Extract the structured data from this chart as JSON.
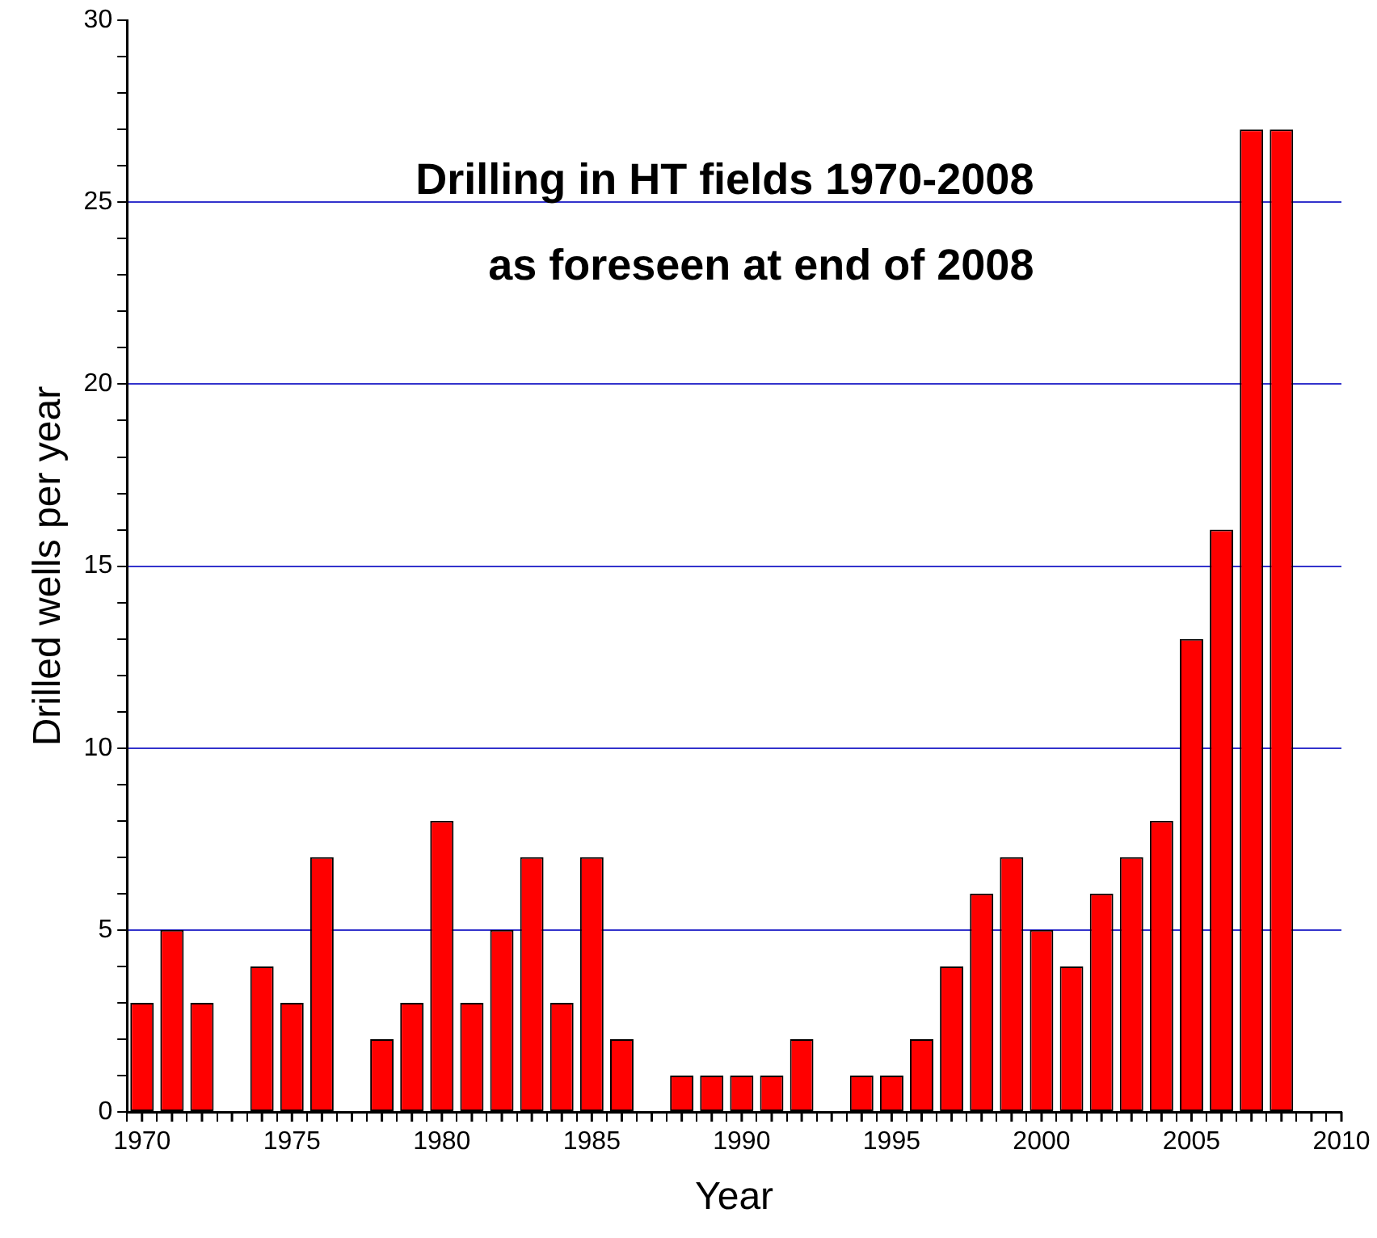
{
  "chart_data": {
    "type": "bar",
    "title": "Drilling in HT fields 1970-2008",
    "subtitle": "as foreseen at end of 2008",
    "xlabel": "Year",
    "ylabel": "Drilled wells per year",
    "x": [
      1970,
      1971,
      1972,
      1973,
      1974,
      1975,
      1976,
      1977,
      1978,
      1979,
      1980,
      1981,
      1982,
      1983,
      1984,
      1985,
      1986,
      1987,
      1988,
      1989,
      1990,
      1991,
      1992,
      1993,
      1994,
      1995,
      1996,
      1997,
      1998,
      1999,
      2000,
      2001,
      2002,
      2003,
      2004,
      2005,
      2006,
      2007,
      2008
    ],
    "values": [
      3,
      5,
      3,
      0,
      4,
      3,
      7,
      0,
      2,
      3,
      8,
      3,
      5,
      7,
      3,
      7,
      2,
      0,
      1,
      1,
      1,
      1,
      2,
      0,
      1,
      1,
      2,
      4,
      6,
      7,
      5,
      4,
      6,
      7,
      8,
      13,
      16,
      27,
      27
    ],
    "color": "#ff0000",
    "xlim": [
      1969.5,
      2010
    ],
    "xticks": [
      1970,
      {
        "value": 1971,
        "label": null
      },
      {
        "value": 1972,
        "label": null
      },
      {
        "value": 1973,
        "label": null
      },
      {
        "value": 1974,
        "label": null
      },
      1975,
      {
        "value": 1976,
        "label": null
      },
      {
        "value": 1977,
        "label": null
      },
      {
        "value": 1978,
        "label": null
      },
      {
        "value": 1979,
        "label": null
      },
      1980,
      {
        "value": 1981,
        "label": null
      },
      {
        "value": 1982,
        "label": null
      },
      {
        "value": 1983,
        "label": null
      },
      {
        "value": 1984,
        "label": null
      },
      1985,
      {
        "value": 1986,
        "label": null
      },
      {
        "value": 1987,
        "label": null
      },
      {
        "value": 1988,
        "label": null
      },
      {
        "value": 1989,
        "label": null
      },
      1990,
      {
        "value": 1991,
        "label": null
      },
      {
        "value": 1992,
        "label": null
      },
      {
        "value": 1993,
        "label": null
      },
      {
        "value": 1994,
        "label": null
      },
      1995,
      {
        "value": 1996,
        "label": null
      },
      {
        "value": 1997,
        "label": null
      },
      {
        "value": 1998,
        "label": null
      },
      {
        "value": 1999,
        "label": null
      },
      2000,
      {
        "value": 2001,
        "label": null
      },
      {
        "value": 2002,
        "label": null
      },
      {
        "value": 2003,
        "label": null
      },
      {
        "value": 2004,
        "label": null
      },
      2005,
      {
        "value": 2006,
        "label": null
      },
      {
        "value": 2007,
        "label": null
      },
      {
        "value": 2008,
        "label": null
      },
      {
        "value": 2009,
        "label": null
      },
      2010
    ],
    "ylim": [
      0,
      30
    ],
    "yticks": [
      0,
      {
        "value": 1,
        "label": null
      },
      {
        "value": 2,
        "label": null
      },
      {
        "value": 3,
        "label": null
      },
      {
        "value": 4,
        "label": null
      },
      5,
      {
        "value": 6,
        "label": null
      },
      {
        "value": 7,
        "label": null
      },
      {
        "value": 8,
        "label": null
      },
      {
        "value": 9,
        "label": null
      },
      10,
      {
        "value": 11,
        "label": null
      },
      {
        "value": 12,
        "label": null
      },
      {
        "value": 13,
        "label": null
      },
      {
        "value": 14,
        "label": null
      },
      15,
      {
        "value": 16,
        "label": null
      },
      {
        "value": 17,
        "label": null
      },
      {
        "value": 18,
        "label": null
      },
      {
        "value": 19,
        "label": null
      },
      20,
      {
        "value": 21,
        "label": null
      },
      {
        "value": 22,
        "label": null
      },
      {
        "value": 23,
        "label": null
      },
      {
        "value": 24,
        "label": null
      },
      25,
      {
        "value": 26,
        "label": null
      },
      {
        "value": 27,
        "label": null
      },
      {
        "value": 28,
        "label": null
      },
      {
        "value": 29,
        "label": null
      },
      30
    ],
    "grid": "y"
  }
}
